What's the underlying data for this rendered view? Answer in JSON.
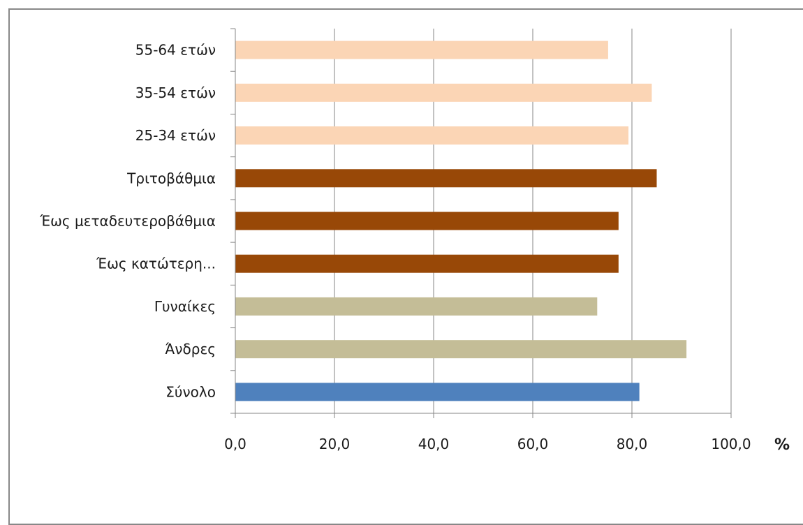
{
  "chart_data": {
    "type": "bar",
    "orientation": "horizontal",
    "categories": [
      "Σύνολο",
      "Άνδρες",
      "Γυναίκες",
      "Έως κατώτερη...",
      "Έως μεταδευτεροβάθμια",
      "Τριτοβάθμια",
      "25-34 ετών",
      "35-54 ετών",
      "55-64 ετών"
    ],
    "values": [
      81.5,
      91.0,
      73.0,
      77.3,
      77.3,
      85.0,
      79.3,
      84.0,
      75.2
    ],
    "bar_colors": [
      "#4f81bd",
      "#c4bd97",
      "#c4bd97",
      "#984807",
      "#984807",
      "#984807",
      "#fbd5b5",
      "#fbd5b5",
      "#fbd5b5"
    ],
    "xlim": [
      0,
      100
    ],
    "xticks": [
      "0,0",
      "20,0",
      "40,0",
      "60,0",
      "80,0",
      "100,0"
    ],
    "xunit": "%",
    "grid": true,
    "gridline_color": "#868686",
    "title": "",
    "xlabel": "",
    "ylabel": ""
  }
}
